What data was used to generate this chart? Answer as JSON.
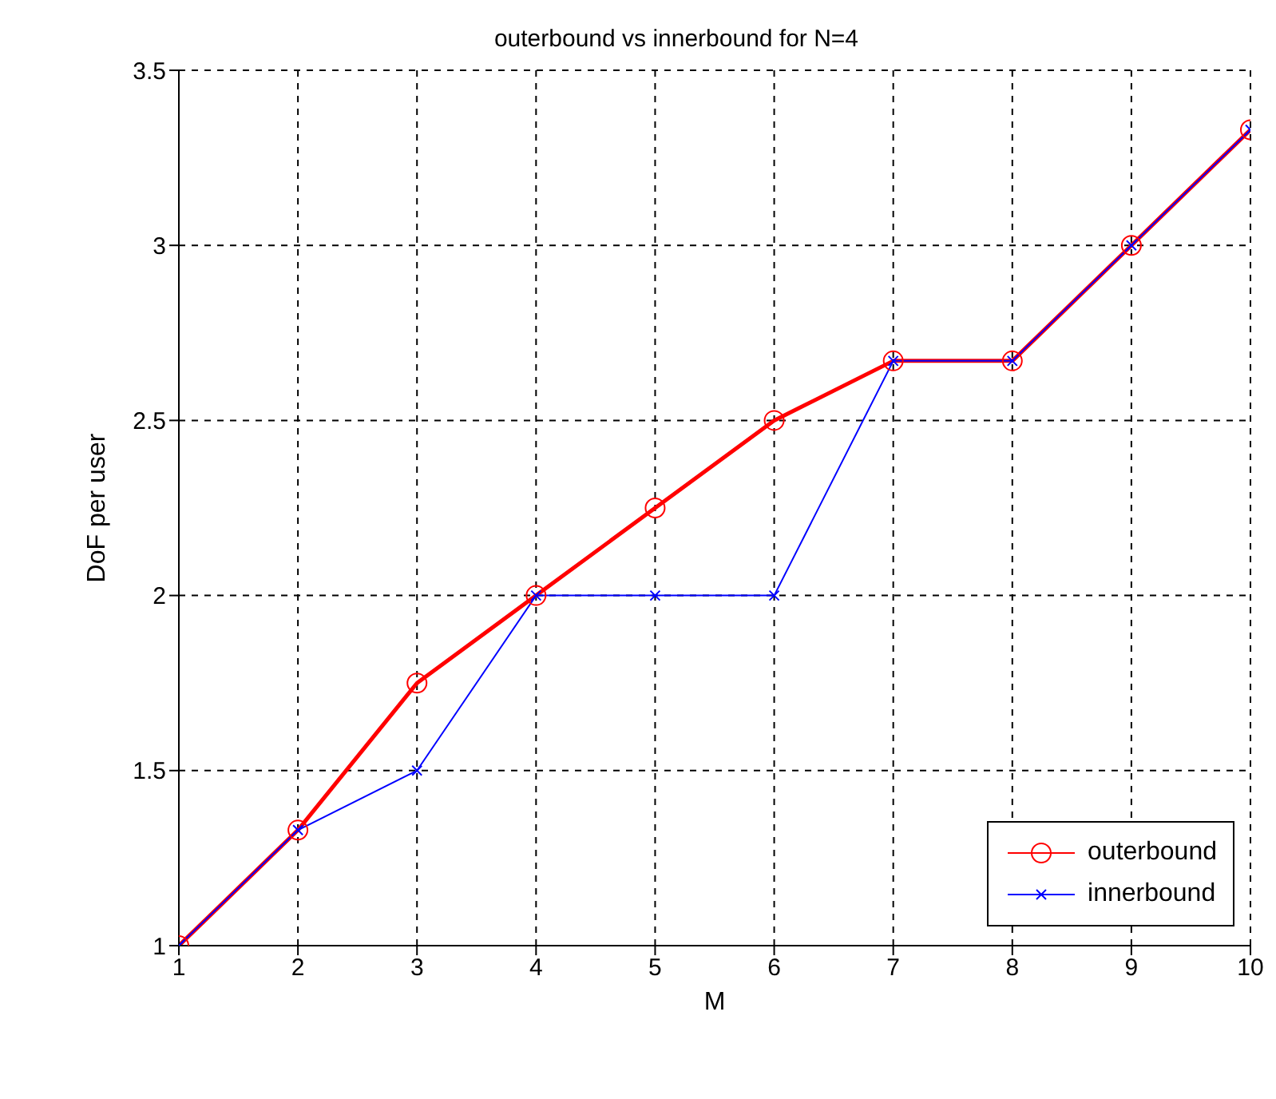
{
  "chart_data": {
    "type": "line",
    "title": "outerbound vs innerbound for N=4",
    "xlabel": "M",
    "ylabel": "DoF per user",
    "x": [
      1,
      2,
      3,
      4,
      5,
      6,
      7,
      8,
      9,
      10
    ],
    "series": [
      {
        "name": "outerbound",
        "color": "#ff0000",
        "marker": "circle",
        "values": [
          1,
          1.33,
          1.75,
          2,
          2.25,
          2.5,
          2.67,
          2.67,
          3,
          3.33
        ]
      },
      {
        "name": "innerbound",
        "color": "#0000ff",
        "marker": "cross",
        "values": [
          1,
          1.33,
          1.5,
          2,
          2,
          2,
          2.67,
          2.67,
          3,
          3.33
        ]
      }
    ],
    "xlim": [
      1,
      10
    ],
    "xticks": [
      1,
      2,
      3,
      4,
      5,
      6,
      7,
      8,
      9,
      10
    ],
    "ylim": [
      1,
      3.5
    ],
    "yticks": [
      1,
      1.5,
      2,
      2.5,
      3,
      3.5
    ],
    "grid": true,
    "legend": "bottom right",
    "line_style": "solid"
  }
}
